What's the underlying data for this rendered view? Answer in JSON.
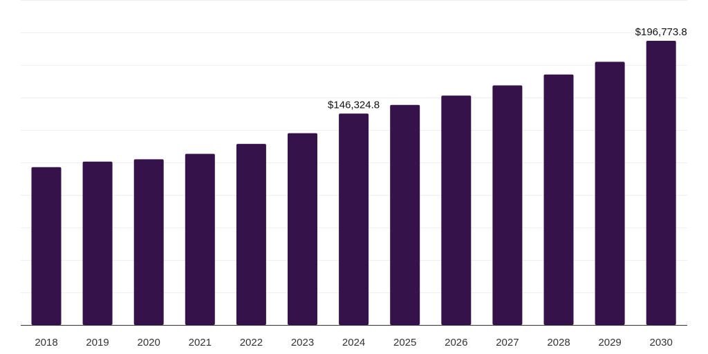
{
  "chart_data": {
    "type": "bar",
    "title": "",
    "xlabel": "",
    "ylabel": "",
    "categories": [
      "2018",
      "2019",
      "2020",
      "2021",
      "2022",
      "2023",
      "2024",
      "2025",
      "2026",
      "2027",
      "2028",
      "2029",
      "2030"
    ],
    "values": [
      109300,
      113100,
      114700,
      118500,
      125400,
      132800,
      146324.8,
      152400,
      158800,
      165900,
      173400,
      182200,
      196773.8
    ],
    "labels": {
      "6": "$146,324.8",
      "12": "$196,773.8"
    },
    "ylim": [
      0,
      225000
    ],
    "y_gridlines": [
      0,
      22500,
      45000,
      67500,
      90000,
      112500,
      135000,
      157500,
      180000,
      202500,
      225000
    ],
    "y_axis_visible": false,
    "grid": true,
    "legend": "none",
    "colors": {
      "bar": "#36124a",
      "grid": "#efefef",
      "axis": "#333333",
      "text": "#333333"
    }
  }
}
